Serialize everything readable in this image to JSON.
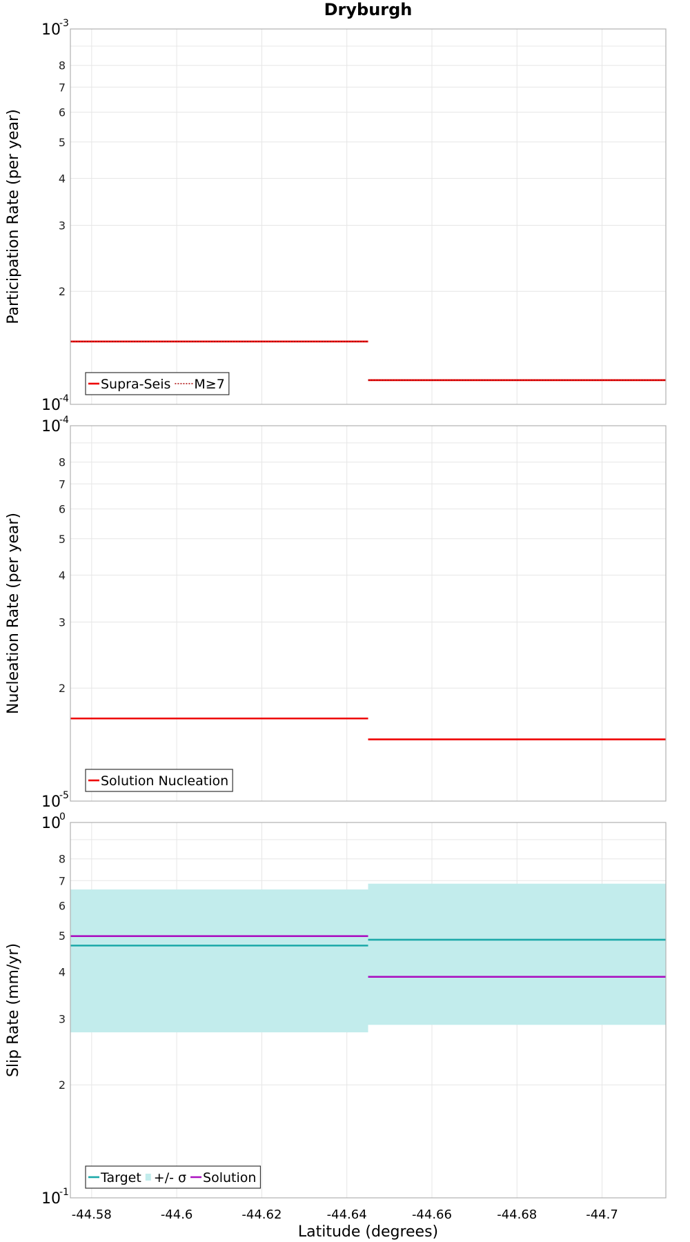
{
  "chart_data": [
    {
      "type": "line",
      "title": "Dryburgh",
      "xlabel": "",
      "ylabel": "Participation Rate (per year)",
      "yscale": "log",
      "ylim": [
        0.0001,
        0.001
      ],
      "xlim": [
        -44.575,
        -44.715
      ],
      "xtick_labels": [],
      "grid": true,
      "legend_position": "bottom-left",
      "legend": [
        {
          "label": "Supra-Seis",
          "style": "solid",
          "color": "#ee0000"
        },
        {
          "label": "M≥7",
          "style": "dotted",
          "color": "#ee0000"
        }
      ],
      "series": [
        {
          "name": "Supra-Seis",
          "color": "#ee0000",
          "style": "solid",
          "segments": [
            {
              "x": [
                -44.575,
                -44.645
              ],
              "y": 0.000147
            },
            {
              "x": [
                -44.645,
                -44.715
              ],
              "y": 0.000116
            }
          ]
        },
        {
          "name": "M≥7",
          "color": "#ee0000",
          "style": "dotted",
          "segments": [
            {
              "x": [
                -44.575,
                -44.645
              ],
              "y": 0.000147
            },
            {
              "x": [
                -44.645,
                -44.715
              ],
              "y": 0.000116
            }
          ]
        }
      ]
    },
    {
      "type": "line",
      "title": "",
      "xlabel": "",
      "ylabel": "Nucleation Rate (per year)",
      "yscale": "log",
      "ylim": [
        1e-05,
        0.0001
      ],
      "xlim": [
        -44.575,
        -44.715
      ],
      "xtick_labels": [],
      "grid": true,
      "legend_position": "bottom-left",
      "legend": [
        {
          "label": "Solution Nucleation",
          "style": "solid",
          "color": "#ee0000"
        }
      ],
      "series": [
        {
          "name": "Solution Nucleation",
          "color": "#ee0000",
          "style": "solid",
          "segments": [
            {
              "x": [
                -44.575,
                -44.645
              ],
              "y": 1.66e-05
            },
            {
              "x": [
                -44.645,
                -44.715
              ],
              "y": 1.46e-05
            }
          ]
        }
      ]
    },
    {
      "type": "line",
      "title": "",
      "xlabel": "Latitude (degrees)",
      "ylabel": "Slip Rate (mm/yr)",
      "yscale": "log",
      "ylim": [
        0.1,
        1
      ],
      "xlim": [
        -44.575,
        -44.715
      ],
      "xtick_labels": [
        "-44.58",
        "-44.6",
        "-44.62",
        "-44.64",
        "-44.66",
        "-44.68",
        "-44.7"
      ],
      "grid": true,
      "legend_position": "bottom-left",
      "legend": [
        {
          "label": "Target",
          "style": "solid",
          "color": "#1aa8a8"
        },
        {
          "label": "+/- σ",
          "style": "band",
          "color": "#c2ecec"
        },
        {
          "label": "Solution",
          "style": "solid",
          "color": "#aa10c0"
        }
      ],
      "bands": [
        {
          "x": [
            -44.575,
            -44.645
          ],
          "low": 0.276,
          "high": 0.663,
          "color": "#c2ecec"
        },
        {
          "x": [
            -44.645,
            -44.715
          ],
          "low": 0.289,
          "high": 0.687,
          "color": "#c2ecec"
        }
      ],
      "series": [
        {
          "name": "Target",
          "color": "#1aa8a8",
          "style": "solid",
          "segments": [
            {
              "x": [
                -44.575,
                -44.645
              ],
              "y": 0.47
            },
            {
              "x": [
                -44.645,
                -44.715
              ],
              "y": 0.487
            }
          ]
        },
        {
          "name": "Solution",
          "color": "#aa10c0",
          "style": "solid",
          "segments": [
            {
              "x": [
                -44.575,
                -44.645
              ],
              "y": 0.498
            },
            {
              "x": [
                -44.645,
                -44.715
              ],
              "y": 0.388
            }
          ]
        }
      ]
    }
  ]
}
